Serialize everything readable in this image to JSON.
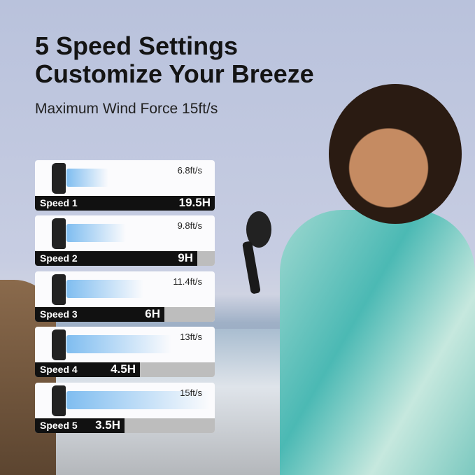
{
  "headline": {
    "line1": "5 Speed Settings",
    "line2": "Customize Your Breeze"
  },
  "subtitle": "Maximum Wind Force 15ft/s",
  "speeds": [
    {
      "label": "Speed 1",
      "wind": "6.8ft/s",
      "runtime": "19.5H",
      "runtime_hours": 19.5
    },
    {
      "label": "Speed 2",
      "wind": "9.8ft/s",
      "runtime": "9H",
      "runtime_hours": 9
    },
    {
      "label": "Speed 3",
      "wind": "11.4ft/s",
      "runtime": "6H",
      "runtime_hours": 6
    },
    {
      "label": "Speed 4",
      "wind": "13ft/s",
      "runtime": "4.5H",
      "runtime_hours": 4.5
    },
    {
      "label": "Speed 5",
      "wind": "15ft/s",
      "runtime": "3.5H",
      "runtime_hours": 3.5
    }
  ]
}
